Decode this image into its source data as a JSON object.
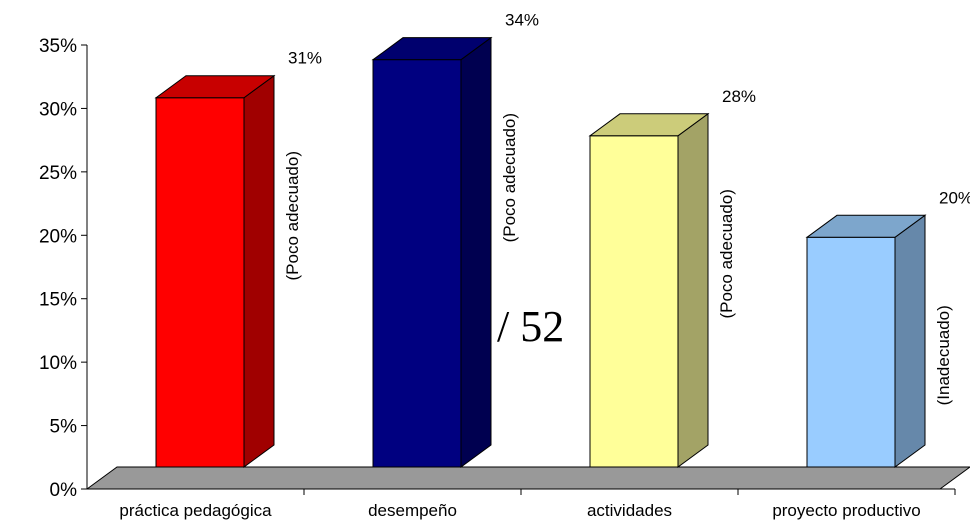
{
  "chart_data": {
    "type": "bar",
    "categories": [
      "práctica pedagógica",
      "desempeño",
      "actividades",
      "proyecto productivo"
    ],
    "values": [
      31,
      34,
      28,
      20
    ],
    "value_labels": [
      "31%",
      "34%",
      "28%",
      "20%"
    ],
    "annotations": [
      "(Poco adecuado)",
      "(Poco adecuado)",
      "(Poco adecuado)",
      "(Inadecuado)"
    ],
    "yticks": [
      "0%",
      "5%",
      "10%",
      "15%",
      "20%",
      "25%",
      "30%",
      "35%"
    ],
    "ylim": [
      0,
      35
    ],
    "grid": false,
    "legend": "none",
    "bar_colors": [
      {
        "front": "#ff0000",
        "side": "#a00000",
        "top": "#c80000"
      },
      {
        "front": "#000080",
        "side": "#000050",
        "top": "#00006e"
      },
      {
        "front": "#ffff99",
        "side": "#a3a366",
        "top": "#cccc7a"
      },
      {
        "front": "#99ccff",
        "side": "#6688aa",
        "top": "#7da6cc"
      }
    ],
    "floor_color": "#999999"
  },
  "page_number": "/ 52"
}
